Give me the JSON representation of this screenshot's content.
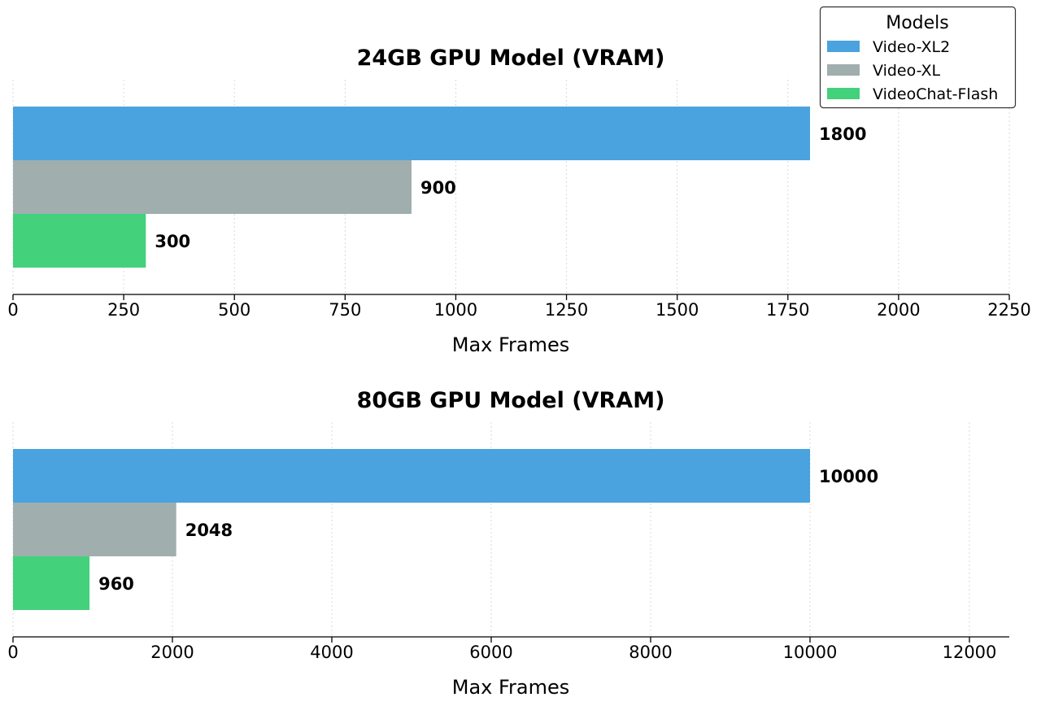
{
  "colors": {
    "Video-XL2": "#4aa3df",
    "Video-XL": "#a0aeae",
    "VideoChat-Flash": "#43d17c"
  },
  "legend": {
    "title": "Models",
    "entries": [
      "Video-XL2",
      "Video-XL",
      "VideoChat-Flash"
    ],
    "placement": "top-right"
  },
  "chart_data": [
    {
      "type": "bar",
      "orientation": "horizontal",
      "title": "24GB GPU Model (VRAM)",
      "xlabel": "Max Frames",
      "ylabel": "",
      "xlim": [
        0,
        2250
      ],
      "ticks": [
        0,
        250,
        500,
        750,
        1000,
        1250,
        1500,
        1750,
        2000,
        2250
      ],
      "grid": "vertical-dotted",
      "series": [
        {
          "name": "Video-XL2",
          "value": 1800,
          "label": "1800"
        },
        {
          "name": "Video-XL",
          "value": 900,
          "label": "900"
        },
        {
          "name": "VideoChat-Flash",
          "value": 300,
          "label": "300"
        }
      ]
    },
    {
      "type": "bar",
      "orientation": "horizontal",
      "title": "80GB GPU Model (VRAM)",
      "xlabel": "Max Frames",
      "ylabel": "",
      "xlim": [
        0,
        12500
      ],
      "ticks": [
        0,
        2000,
        4000,
        6000,
        8000,
        10000,
        12000
      ],
      "grid": "vertical-dotted",
      "series": [
        {
          "name": "Video-XL2",
          "value": 10000,
          "label": "10000"
        },
        {
          "name": "Video-XL",
          "value": 2048,
          "label": "2048"
        },
        {
          "name": "VideoChat-Flash",
          "value": 960,
          "label": "960"
        }
      ]
    }
  ]
}
